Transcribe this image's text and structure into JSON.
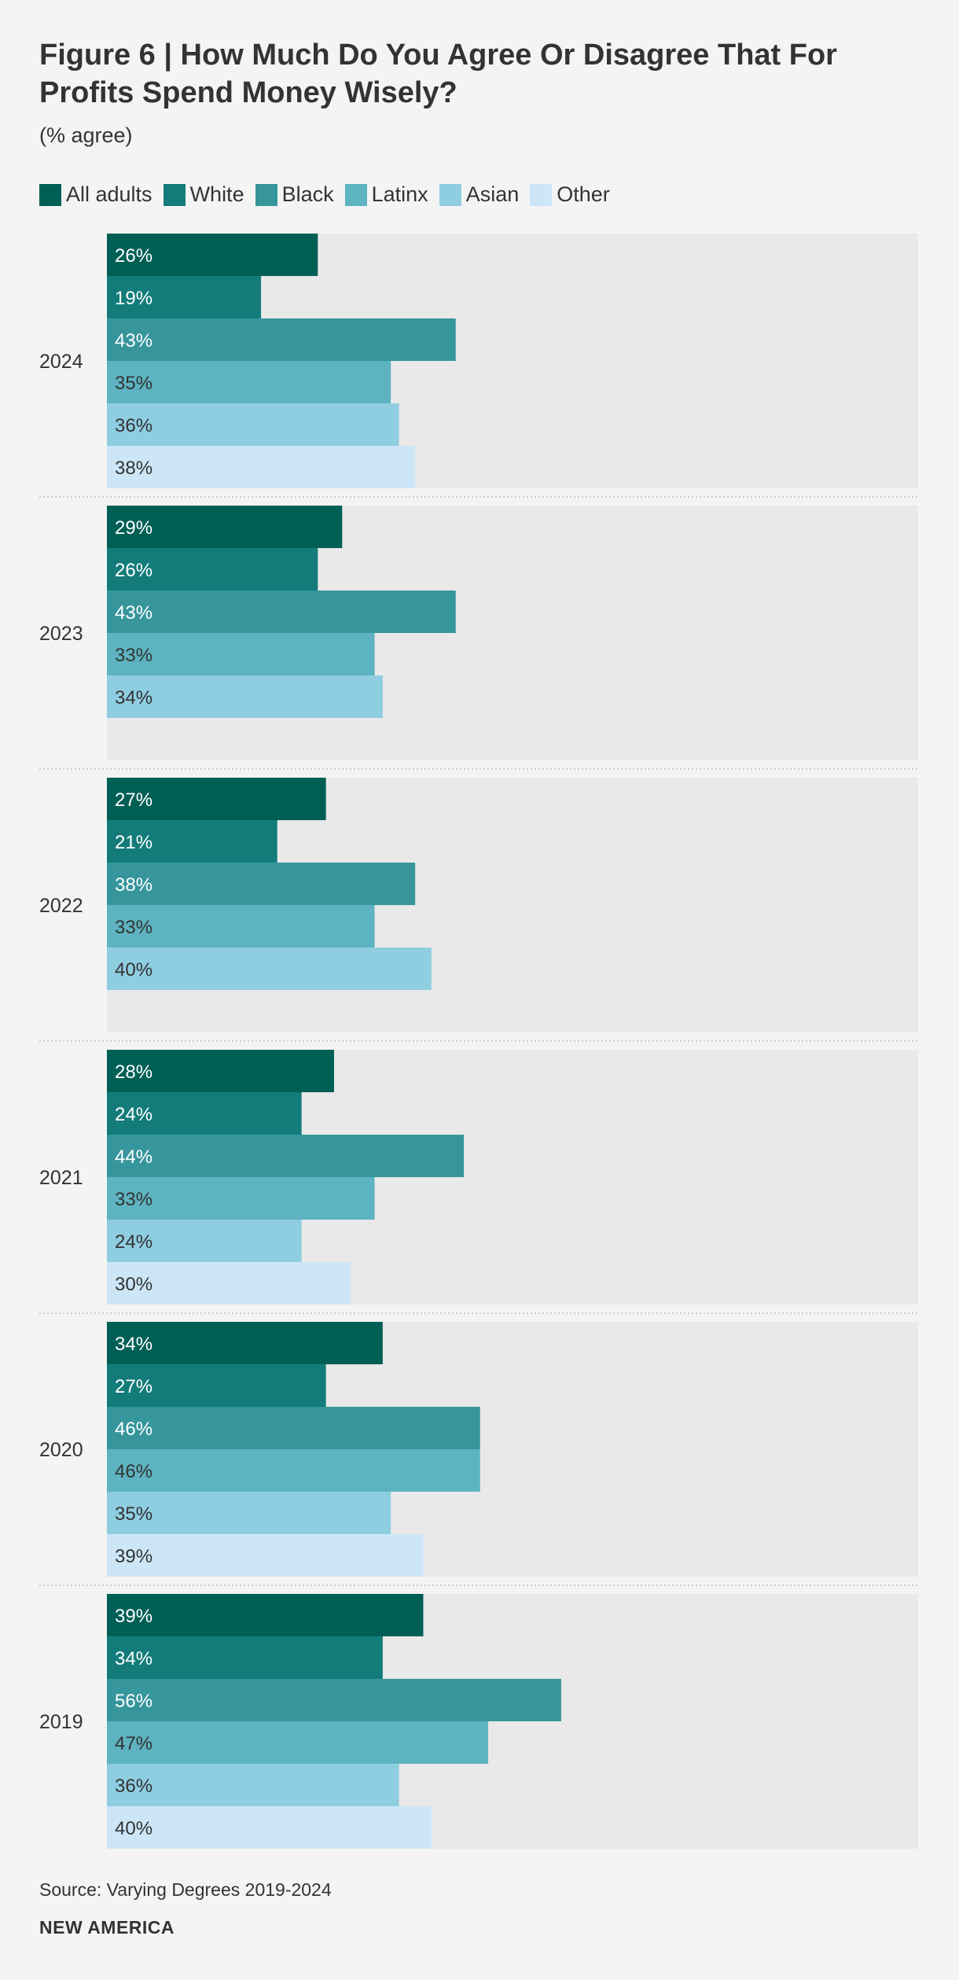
{
  "header": {
    "title": "Figure 6 | How Much Do You Agree Or Disagree That For Profits Spend Money Wisely?",
    "subtitle": "(% agree)"
  },
  "legend": [
    {
      "label": "All adults",
      "color": "#005f55"
    },
    {
      "label": "White",
      "color": "#137c7a"
    },
    {
      "label": "Black",
      "color": "#36969c"
    },
    {
      "label": "Latinx",
      "color": "#5db3c2"
    },
    {
      "label": "Asian",
      "color": "#8fcde1"
    },
    {
      "label": "Other",
      "color": "#cce6f7"
    }
  ],
  "chart_data": {
    "type": "bar",
    "orientation": "horizontal",
    "title": "Figure 6 | How Much Do You Agree Or Disagree That For Profits Spend Money Wisely?",
    "subtitle": "(% agree)",
    "xlim": [
      0,
      100
    ],
    "categories": [
      "2024",
      "2023",
      "2022",
      "2021",
      "2020",
      "2019"
    ],
    "series": [
      {
        "name": "All adults",
        "values": [
          26,
          29,
          27,
          28,
          34,
          39
        ]
      },
      {
        "name": "White",
        "values": [
          19,
          26,
          21,
          24,
          27,
          34
        ]
      },
      {
        "name": "Black",
        "values": [
          43,
          43,
          38,
          44,
          46,
          56
        ]
      },
      {
        "name": "Latinx",
        "values": [
          35,
          33,
          33,
          33,
          46,
          47
        ]
      },
      {
        "name": "Asian",
        "values": [
          36,
          34,
          40,
          24,
          35,
          36
        ]
      },
      {
        "name": "Other",
        "values": [
          38,
          null,
          null,
          30,
          39,
          40
        ]
      }
    ],
    "label_colors": [
      "#ffffff",
      "#ffffff",
      "#ffffff",
      "#333333",
      "#333333",
      "#333333"
    ],
    "value_suffix": "%"
  },
  "footer": {
    "source": "Source: Varying Degrees 2019-2024",
    "brand": "NEW AMERICA"
  }
}
